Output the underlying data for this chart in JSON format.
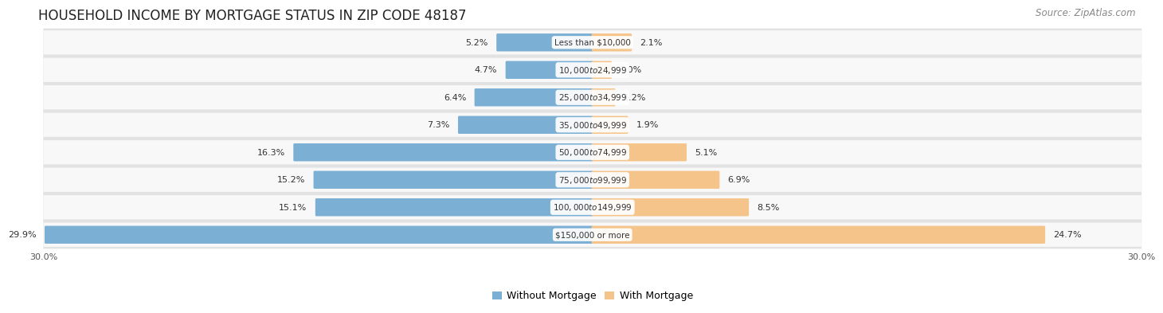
{
  "title": "HOUSEHOLD INCOME BY MORTGAGE STATUS IN ZIP CODE 48187",
  "source": "Source: ZipAtlas.com",
  "categories": [
    "Less than $10,000",
    "$10,000 to $24,999",
    "$25,000 to $34,999",
    "$35,000 to $49,999",
    "$50,000 to $74,999",
    "$75,000 to $99,999",
    "$100,000 to $149,999",
    "$150,000 or more"
  ],
  "without_mortgage": [
    5.2,
    4.7,
    6.4,
    7.3,
    16.3,
    15.2,
    15.1,
    29.9
  ],
  "with_mortgage": [
    2.1,
    1.0,
    1.2,
    1.9,
    5.1,
    6.9,
    8.5,
    24.7
  ],
  "without_mortgage_color": "#7bafd4",
  "with_mortgage_color": "#f5c48a",
  "axis_max": 30.0,
  "row_bg_color": "#e2e2e2",
  "row_inner_color": "#f8f8f8",
  "title_fontsize": 12,
  "source_fontsize": 8.5,
  "label_fontsize": 8,
  "category_fontsize": 7.5,
  "legend_fontsize": 9,
  "axis_label_fontsize": 8
}
